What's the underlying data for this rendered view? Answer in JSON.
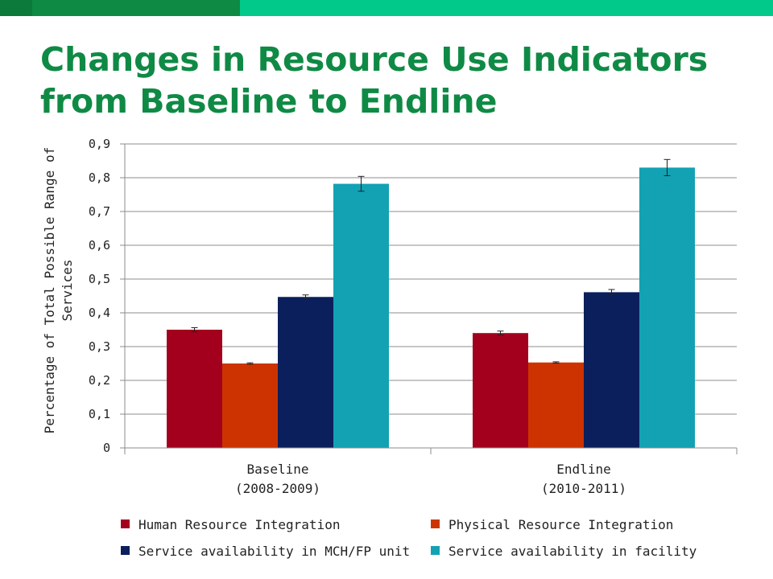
{
  "slide": {
    "title_line1": "Changes in Resource Use Indicators",
    "title_line2": "from Baseline to Endline",
    "title_color": "#0f8a45",
    "topbar_colors": [
      "#0b7a3a",
      "#0f8a45",
      "#00c98a"
    ]
  },
  "chart_data": {
    "type": "bar",
    "title": "",
    "xlabel": "",
    "ylabel_lines": [
      "Percentage of Total Possible Range of",
      "Services"
    ],
    "categories": [
      {
        "line1": "Baseline",
        "line2": "(2008-2009)"
      },
      {
        "line1": "Endline",
        "line2": "(2010-2011)"
      }
    ],
    "ylim": [
      0,
      0.9
    ],
    "yticks": [
      0,
      0.1,
      0.2,
      0.3,
      0.4,
      0.5,
      0.6,
      0.7,
      0.8,
      0.9
    ],
    "ytick_labels": [
      "0",
      "0,1",
      "0,2",
      "0,3",
      "0,4",
      "0,5",
      "0,6",
      "0,7",
      "0,8",
      "0,9"
    ],
    "grid": true,
    "legend_position": "bottom",
    "series": [
      {
        "name": "Human Resource Integration",
        "color": "#a3001e",
        "values": [
          0.35,
          0.34
        ],
        "errors": [
          0.006,
          0.006
        ]
      },
      {
        "name": "Physical Resource Integration",
        "color": "#cc3300",
        "values": [
          0.25,
          0.253
        ],
        "errors": [
          0.002,
          0.002
        ]
      },
      {
        "name": "Service availability in MCH/FP unit",
        "color": "#0a1f5c",
        "values": [
          0.447,
          0.461
        ],
        "errors": [
          0.006,
          0.008
        ]
      },
      {
        "name": "Service availability in facility",
        "color": "#12a2b3",
        "values": [
          0.782,
          0.83
        ],
        "errors": [
          0.022,
          0.024
        ]
      }
    ]
  }
}
